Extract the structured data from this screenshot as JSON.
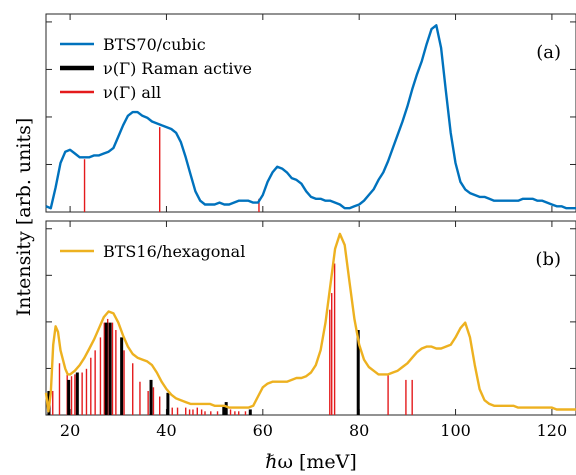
{
  "chart_data": [
    {
      "type": "line",
      "panel_label": "(a)",
      "xlim": [
        15,
        125
      ],
      "ylim": [
        0,
        1.05
      ],
      "grid": false,
      "legend_placement": "top-left",
      "legend": [
        {
          "label": "BTS70/cubic",
          "color": "#0072BD",
          "style": "line"
        },
        {
          "label": "ν(Γ) Raman active",
          "color": "#000000",
          "style": "thick"
        },
        {
          "label": "ν(Γ) all",
          "color": "#e41a1c",
          "style": "line"
        }
      ],
      "series": [
        {
          "name": "BTS70/cubic",
          "color": "#0072BD",
          "x": [
            15.0,
            16.0,
            17.0,
            18.0,
            19.0,
            20.0,
            21.0,
            22.0,
            23.0,
            24.0,
            25.0,
            26.0,
            27.0,
            28.0,
            29.0,
            30.0,
            31.0,
            32.0,
            33.0,
            34.0,
            35.0,
            36.0,
            37.0,
            38.0,
            39.0,
            40.0,
            41.0,
            42.0,
            43.0,
            44.0,
            45.0,
            46.0,
            47.0,
            48.0,
            49.0,
            50.0,
            51.0,
            52.0,
            53.0,
            54.0,
            55.0,
            56.0,
            57.0,
            58.0,
            59.0,
            60.0,
            61.0,
            62.0,
            63.0,
            64.0,
            65.0,
            66.0,
            67.0,
            68.0,
            69.0,
            70.0,
            71.0,
            72.0,
            73.0,
            74.0,
            75.0,
            76.0,
            77.0,
            78.0,
            79.0,
            80.0,
            81.0,
            82.0,
            83.0,
            84.0,
            85.0,
            86.0,
            87.0,
            88.0,
            89.0,
            90.0,
            91.0,
            92.0,
            93.0,
            94.0,
            95.0,
            96.0,
            97.0,
            98.0,
            99.0,
            100.0,
            101.0,
            102.0,
            103.0,
            104.0,
            105.0,
            106.0,
            107.0,
            108.0,
            109.0,
            110.0,
            111.0,
            112.0,
            113.0,
            114.0,
            115.0,
            116.0,
            117.0,
            118.0,
            119.0,
            120.0,
            121.0,
            122.0,
            123.0,
            124.0,
            125.0
          ],
          "y": [
            0.03,
            0.02,
            0.13,
            0.26,
            0.32,
            0.33,
            0.31,
            0.29,
            0.29,
            0.29,
            0.3,
            0.3,
            0.31,
            0.32,
            0.34,
            0.4,
            0.46,
            0.51,
            0.53,
            0.53,
            0.51,
            0.5,
            0.48,
            0.47,
            0.46,
            0.45,
            0.44,
            0.42,
            0.37,
            0.29,
            0.2,
            0.11,
            0.06,
            0.04,
            0.04,
            0.04,
            0.05,
            0.04,
            0.04,
            0.05,
            0.06,
            0.06,
            0.06,
            0.05,
            0.05,
            0.09,
            0.16,
            0.21,
            0.24,
            0.23,
            0.21,
            0.18,
            0.17,
            0.15,
            0.11,
            0.08,
            0.07,
            0.07,
            0.06,
            0.06,
            0.05,
            0.04,
            0.02,
            0.02,
            0.03,
            0.04,
            0.06,
            0.09,
            0.12,
            0.17,
            0.21,
            0.27,
            0.34,
            0.41,
            0.48,
            0.56,
            0.65,
            0.73,
            0.8,
            0.89,
            0.97,
            0.99,
            0.87,
            0.64,
            0.42,
            0.26,
            0.16,
            0.12,
            0.1,
            0.09,
            0.08,
            0.08,
            0.07,
            0.06,
            0.06,
            0.06,
            0.06,
            0.06,
            0.06,
            0.07,
            0.07,
            0.07,
            0.06,
            0.06,
            0.05,
            0.04,
            0.03,
            0.03,
            0.02,
            0.02,
            0.02
          ]
        }
      ],
      "sticks_all": [
        {
          "x": 23.0,
          "h": 0.28
        },
        {
          "x": 38.6,
          "h": 0.45
        },
        {
          "x": 59.2,
          "h": 0.07
        }
      ],
      "sticks_raman": []
    },
    {
      "type": "line",
      "panel_label": "(b)",
      "xlim": [
        15,
        125
      ],
      "ylim": [
        0,
        1.05
      ],
      "grid": false,
      "legend_placement": "top-left",
      "legend": [
        {
          "label": "BTS16/hexagonal",
          "color": "#EDB120",
          "style": "line"
        }
      ],
      "series": [
        {
          "name": "BTS16/hexagonal",
          "color": "#EDB120",
          "x": [
            15.0,
            15.5,
            16.0,
            16.5,
            17.0,
            17.5,
            18.0,
            18.5,
            19.0,
            19.5,
            20.0,
            21.0,
            22.0,
            23.0,
            24.0,
            25.0,
            26.0,
            27.0,
            28.0,
            29.0,
            30.0,
            31.0,
            32.0,
            33.0,
            34.0,
            35.0,
            36.0,
            37.0,
            38.0,
            39.0,
            40.0,
            41.0,
            42.0,
            43.0,
            44.0,
            45.0,
            46.0,
            47.0,
            48.0,
            49.0,
            50.0,
            51.0,
            52.0,
            53.0,
            54.0,
            55.0,
            56.0,
            57.0,
            58.0,
            59.0,
            60.0,
            61.0,
            62.0,
            63.0,
            64.0,
            65.0,
            66.0,
            67.0,
            68.0,
            69.0,
            70.0,
            71.0,
            72.0,
            73.0,
            74.0,
            75.0,
            76.0,
            77.0,
            78.0,
            79.0,
            80.0,
            81.0,
            82.0,
            83.0,
            84.0,
            85.0,
            86.0,
            87.0,
            88.0,
            89.0,
            90.0,
            91.0,
            92.0,
            93.0,
            94.0,
            95.0,
            96.0,
            97.0,
            98.0,
            99.0,
            100.0,
            101.0,
            102.0,
            103.0,
            104.0,
            105.0,
            106.0,
            107.0,
            108.0,
            109.0,
            110.0,
            111.0,
            112.0,
            113.0,
            114.0,
            115.0,
            116.0,
            117.0,
            118.0,
            119.0,
            120.0,
            121.0,
            122.0,
            123.0,
            124.0,
            125.0
          ],
          "y": [
            0.12,
            0.02,
            0.12,
            0.38,
            0.48,
            0.45,
            0.35,
            0.3,
            0.25,
            0.22,
            0.22,
            0.24,
            0.27,
            0.31,
            0.36,
            0.41,
            0.47,
            0.53,
            0.56,
            0.55,
            0.5,
            0.43,
            0.37,
            0.33,
            0.31,
            0.3,
            0.29,
            0.27,
            0.23,
            0.18,
            0.14,
            0.11,
            0.09,
            0.08,
            0.07,
            0.06,
            0.06,
            0.06,
            0.06,
            0.06,
            0.05,
            0.05,
            0.05,
            0.04,
            0.04,
            0.04,
            0.04,
            0.04,
            0.05,
            0.1,
            0.15,
            0.17,
            0.18,
            0.18,
            0.18,
            0.18,
            0.19,
            0.2,
            0.2,
            0.21,
            0.23,
            0.27,
            0.35,
            0.5,
            0.7,
            0.9,
            0.98,
            0.92,
            0.72,
            0.52,
            0.38,
            0.3,
            0.26,
            0.24,
            0.22,
            0.22,
            0.22,
            0.23,
            0.24,
            0.26,
            0.28,
            0.31,
            0.34,
            0.36,
            0.37,
            0.37,
            0.36,
            0.36,
            0.37,
            0.38,
            0.42,
            0.47,
            0.5,
            0.42,
            0.27,
            0.14,
            0.08,
            0.06,
            0.05,
            0.05,
            0.05,
            0.05,
            0.05,
            0.04,
            0.04,
            0.04,
            0.04,
            0.04,
            0.04,
            0.04,
            0.04,
            0.03,
            0.03,
            0.03,
            0.03,
            0.03
          ]
        }
      ],
      "sticks_all": [
        {
          "x": 15.8,
          "h": 0.11
        },
        {
          "x": 16.4,
          "h": 0.13
        },
        {
          "x": 17.8,
          "h": 0.28
        },
        {
          "x": 19.4,
          "h": 0.23
        },
        {
          "x": 20.3,
          "h": 0.21
        },
        {
          "x": 21.0,
          "h": 0.22
        },
        {
          "x": 22.5,
          "h": 0.23
        },
        {
          "x": 23.4,
          "h": 0.25
        },
        {
          "x": 24.3,
          "h": 0.31
        },
        {
          "x": 25.2,
          "h": 0.35
        },
        {
          "x": 26.3,
          "h": 0.42
        },
        {
          "x": 27.1,
          "h": 0.5
        },
        {
          "x": 27.8,
          "h": 0.52
        },
        {
          "x": 28.8,
          "h": 0.5
        },
        {
          "x": 29.5,
          "h": 0.46
        },
        {
          "x": 31.2,
          "h": 0.35
        },
        {
          "x": 33.0,
          "h": 0.28
        },
        {
          "x": 34.5,
          "h": 0.18
        },
        {
          "x": 36.2,
          "h": 0.13
        },
        {
          "x": 37.3,
          "h": 0.15
        },
        {
          "x": 38.6,
          "h": 0.1
        },
        {
          "x": 41.2,
          "h": 0.04
        },
        {
          "x": 42.3,
          "h": 0.04
        },
        {
          "x": 44.0,
          "h": 0.04
        },
        {
          "x": 44.8,
          "h": 0.03
        },
        {
          "x": 45.5,
          "h": 0.03
        },
        {
          "x": 46.4,
          "h": 0.04
        },
        {
          "x": 47.3,
          "h": 0.03
        },
        {
          "x": 48.0,
          "h": 0.02
        },
        {
          "x": 49.2,
          "h": 0.02
        },
        {
          "x": 50.6,
          "h": 0.02
        },
        {
          "x": 53.3,
          "h": 0.03
        },
        {
          "x": 54.2,
          "h": 0.02
        },
        {
          "x": 55.0,
          "h": 0.02
        },
        {
          "x": 56.4,
          "h": 0.02
        },
        {
          "x": 73.9,
          "h": 0.57
        },
        {
          "x": 74.3,
          "h": 0.66
        },
        {
          "x": 74.9,
          "h": 0.82
        },
        {
          "x": 86.0,
          "h": 0.22
        },
        {
          "x": 89.7,
          "h": 0.19
        },
        {
          "x": 91.0,
          "h": 0.19
        }
      ],
      "sticks_raman": [
        {
          "x": 15.6,
          "h": 0.13
        },
        {
          "x": 19.7,
          "h": 0.19
        },
        {
          "x": 21.5,
          "h": 0.23
        },
        {
          "x": 27.5,
          "h": 0.5
        },
        {
          "x": 28.3,
          "h": 0.5
        },
        {
          "x": 30.7,
          "h": 0.42
        },
        {
          "x": 36.8,
          "h": 0.19
        },
        {
          "x": 40.3,
          "h": 0.12
        },
        {
          "x": 51.9,
          "h": 0.05
        },
        {
          "x": 52.4,
          "h": 0.07
        },
        {
          "x": 57.4,
          "h": 0.03
        },
        {
          "x": 79.8,
          "h": 0.46
        }
      ]
    }
  ],
  "axes": {
    "xlabel": "ℏω [meV]",
    "ylabel": "Intensity [arb. units]",
    "xticks": [
      20,
      40,
      60,
      80,
      100,
      120
    ]
  }
}
